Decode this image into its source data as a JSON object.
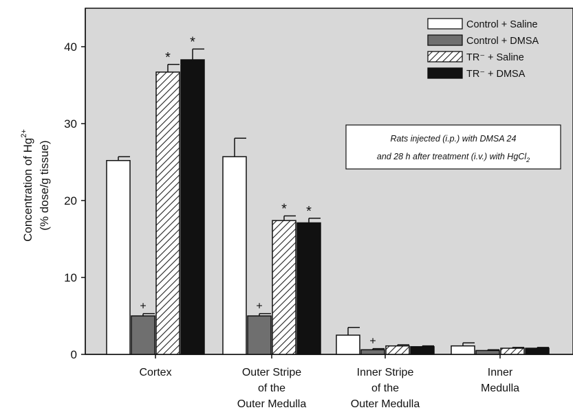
{
  "chart_data": {
    "type": "bar",
    "title": "",
    "xlabel": "",
    "ylabel_line1": "Concentration of Hg",
    "ylabel_sup": "2+",
    "ylabel_line2": "(% dose/g tissue)",
    "ylim": [
      0,
      45
    ],
    "yticks": [
      0,
      10,
      20,
      30,
      40
    ],
    "grid": false,
    "legend_position": "top-right",
    "plot_background": "#d8d8d8",
    "categories": [
      [
        "Cortex"
      ],
      [
        "Outer Stripe",
        "of the",
        "Outer Medulla"
      ],
      [
        "Inner Stripe",
        "of the",
        "Outer Medulla"
      ],
      [
        "Inner",
        "Medulla"
      ]
    ],
    "series": [
      {
        "name": "Control + Saline",
        "fill": "white",
        "values": [
          25.2,
          25.7,
          2.5,
          1.1
        ],
        "errors": [
          0.5,
          2.4,
          1.0,
          0.4
        ],
        "marks": [
          "",
          "",
          "",
          ""
        ]
      },
      {
        "name": "Control + DMSA",
        "fill": "gray",
        "values": [
          5.0,
          5.0,
          0.6,
          0.5
        ],
        "errors": [
          0.3,
          0.3,
          0.15,
          0.1
        ],
        "marks": [
          "+",
          "+",
          "+",
          ""
        ]
      },
      {
        "name": "TR⁻ + Saline",
        "fill": "hatch",
        "values": [
          36.7,
          17.4,
          1.1,
          0.8
        ],
        "errors": [
          1.0,
          0.6,
          0.15,
          0.1
        ],
        "marks": [
          "*",
          "*",
          "",
          ""
        ]
      },
      {
        "name": "TR⁻ + DMSA",
        "fill": "black",
        "values": [
          38.3,
          17.1,
          1.0,
          0.8
        ],
        "errors": [
          1.4,
          0.6,
          0.1,
          0.1
        ],
        "marks": [
          "*",
          "*",
          "",
          ""
        ]
      }
    ],
    "annotation": {
      "line1": "Rats injected (i.p.) with DMSA 24",
      "line2": "and 28 h after treatment (i.v.) with HgCl",
      "line2_sub": "2"
    },
    "colors": {
      "white": "#ffffff",
      "gray": "#6f6f6f",
      "black": "#111111",
      "hatch_line": "#222222",
      "hatch_bg": "#ffffff"
    }
  }
}
